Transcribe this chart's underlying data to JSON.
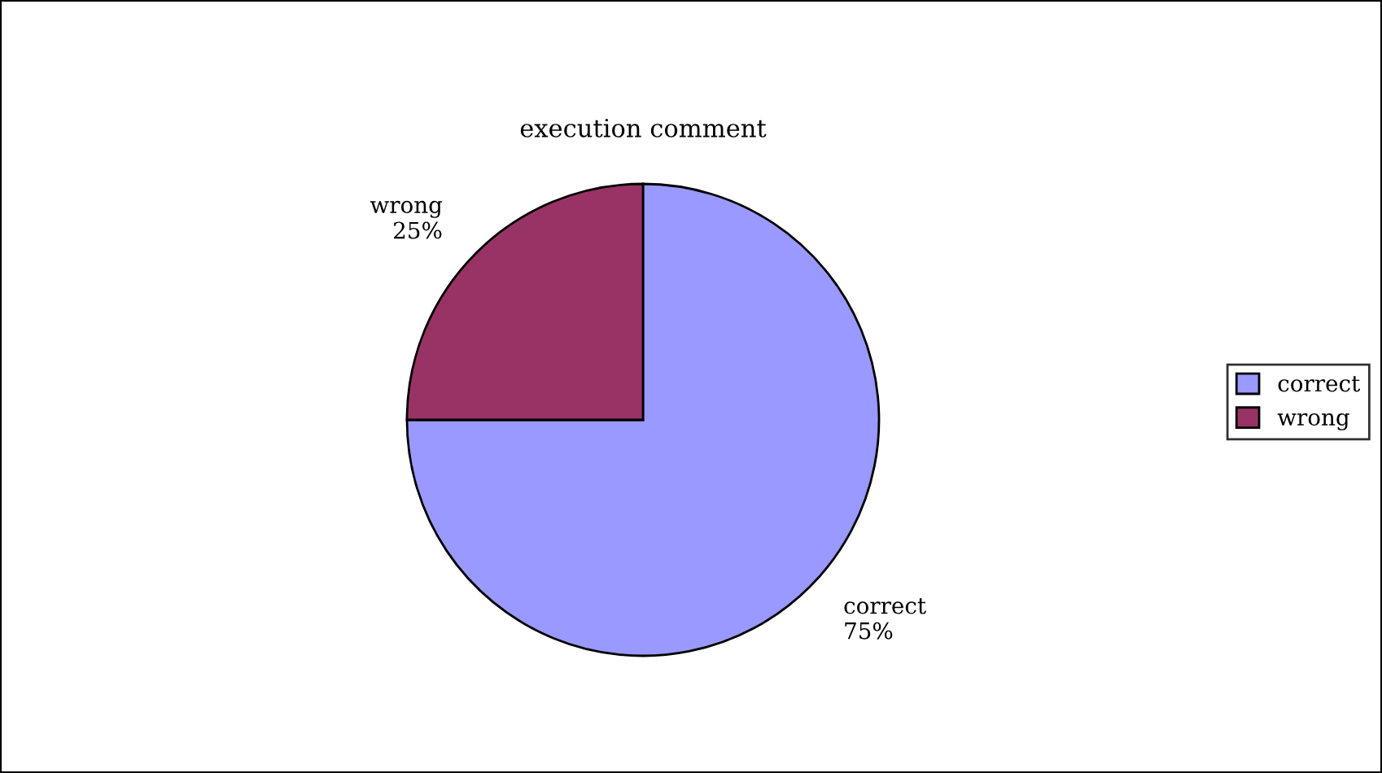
{
  "chart_data": {
    "type": "pie",
    "title": "execution comment",
    "categories": [
      "correct",
      "wrong"
    ],
    "values": [
      75,
      25
    ],
    "value_labels": [
      "75%",
      "25%"
    ],
    "colors": [
      "#9999ff",
      "#993366"
    ],
    "legend": "right"
  }
}
